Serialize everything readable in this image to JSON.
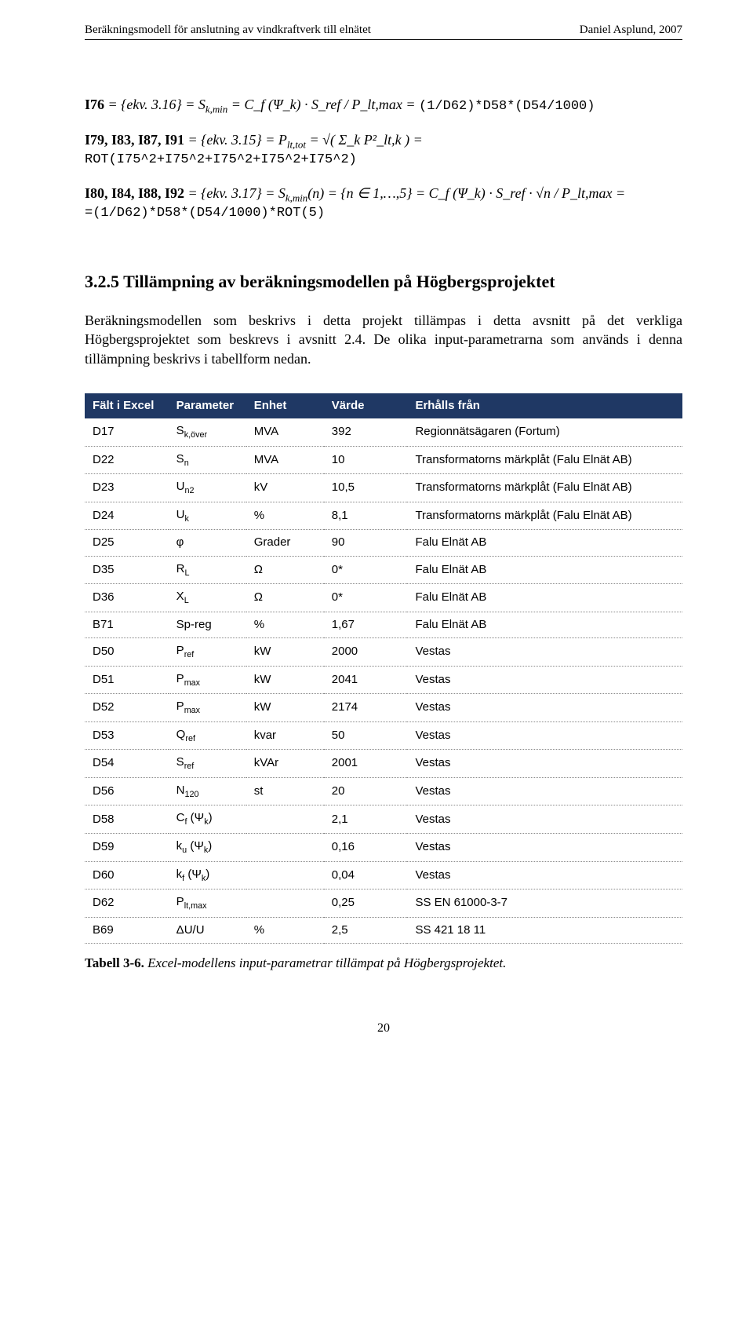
{
  "header": {
    "left": "Beräkningsmodell för anslutning av vindkraftverk till elnätet",
    "right": "Daniel Asplund, 2007"
  },
  "equations": {
    "e1_label": "I76",
    "e1_lhs": " = {ekv. 3.16} = S",
    "e1_sub": "k,min",
    "e1_mid": " = C_f (Ψ_k) · S_ref / P_lt,max = ",
    "e1_rhs_mono": "(1/D62)*D58*(D54/1000)",
    "e2_label": "I79, I83, I87, I91",
    "e2_lhs": " = {ekv. 3.15} = P",
    "e2_sub": "lt,tot",
    "e2_mid": " = √( Σ_k P²_lt,k ) =",
    "e2_rhs_mono": "ROT(I75^2+I75^2+I75^2+I75^2+I75^2)",
    "e3_label": "I80, I84, I88, I92",
    "e3_lhs": " = {ekv. 3.17} = S",
    "e3_sub": "k,min",
    "e3_mid": "(n) = {n ∈ 1,…,5} = C_f (Ψ_k) · S_ref · √n / P_lt,max =",
    "e3_rhs_mono": "=(1/D62)*D58*(D54/1000)*ROT(5)"
  },
  "section": {
    "heading": "3.2.5 Tillämpning av beräkningsmodellen på Högbergsprojektet",
    "body": "Beräkningsmodellen som beskrivs i detta projekt tillämpas i detta avsnitt på det verkliga Högbergsprojektet som beskrevs i avsnitt 2.4. De olika input-parametrarna som används i denna tillämpning beskrivs i tabellform nedan."
  },
  "table": {
    "header_bg": "#1f3864",
    "header_fg": "#ffffff",
    "row_border": "#888888",
    "headers": {
      "c1": "Fält i Excel",
      "c2": "Parameter",
      "c3": "Enhet",
      "c4": "Värde",
      "c5": "Erhålls från"
    },
    "rows": [
      {
        "f": "D17",
        "p": "S",
        "psub": "k,över",
        "u": "MVA",
        "v": "392",
        "s": "Regionnätsägaren (Fortum)"
      },
      {
        "f": "D22",
        "p": "S",
        "psub": "n",
        "u": "MVA",
        "v": "10",
        "s": "Transformatorns märkplåt (Falu Elnät AB)"
      },
      {
        "f": "D23",
        "p": "U",
        "psub": "n2",
        "u": "kV",
        "v": "10,5",
        "s": "Transformatorns märkplåt (Falu Elnät AB)"
      },
      {
        "f": "D24",
        "p": "U",
        "psub": "k",
        "u": "%",
        "v": "8,1",
        "s": "Transformatorns märkplåt (Falu Elnät AB)"
      },
      {
        "f": "D25",
        "p": "φ",
        "psub": "",
        "u": "Grader",
        "v": "90",
        "s": "Falu Elnät AB"
      },
      {
        "f": "D35",
        "p": "R",
        "psub": "L",
        "u": "Ω",
        "v": "0*",
        "s": "Falu Elnät AB"
      },
      {
        "f": "D36",
        "p": "X",
        "psub": "L",
        "u": "Ω",
        "v": "0*",
        "s": "Falu Elnät AB"
      },
      {
        "f": "B71",
        "p": "Sp-reg",
        "psub": "",
        "u": "%",
        "v": "1,67",
        "s": "Falu Elnät AB"
      },
      {
        "f": "D50",
        "p": "P",
        "psub": "ref",
        "u": "kW",
        "v": "2000",
        "s": "Vestas"
      },
      {
        "f": "D51",
        "p": "P",
        "psub": "max",
        "u": "kW",
        "v": "2041",
        "s": "Vestas"
      },
      {
        "f": "D52",
        "p": "P",
        "psub": "max",
        "u": "kW",
        "v": "2174",
        "s": "Vestas"
      },
      {
        "f": "D53",
        "p": "Q",
        "psub": "ref",
        "u": "kvar",
        "v": "50",
        "s": "Vestas"
      },
      {
        "f": "D54",
        "p": "S",
        "psub": "ref",
        "u": "kVAr",
        "v": "2001",
        "s": "Vestas"
      },
      {
        "f": "D56",
        "p": "N",
        "psub": "120",
        "u": "st",
        "v": "20",
        "s": "Vestas"
      },
      {
        "f": "D58",
        "p": "C",
        "psub": "f",
        "ptail": " (Ψ",
        "ptailsub": "k",
        "ptailend": ")",
        "u": "",
        "v": "2,1",
        "s": "Vestas"
      },
      {
        "f": "D59",
        "p": "k",
        "psub": "u",
        "ptail": " (Ψ",
        "ptailsub": "k",
        "ptailend": ")",
        "u": "",
        "v": "0,16",
        "s": "Vestas"
      },
      {
        "f": "D60",
        "p": "k",
        "psub": "f",
        "ptail": " (Ψ",
        "ptailsub": "k",
        "ptailend": ")",
        "u": "",
        "v": "0,04",
        "s": "Vestas"
      },
      {
        "f": "D62",
        "p": "P",
        "psub": "lt,max",
        "u": "",
        "v": "0,25",
        "s": "SS EN 61000-3-7"
      },
      {
        "f": "B69",
        "p": "ΔU/U",
        "psub": "",
        "u": "%",
        "v": "2,5",
        "s": "SS 421 18 11"
      }
    ]
  },
  "caption": {
    "label": "Tabell 3-6.",
    "text": " Excel-modellens input-parametrar tillämpat på Högbergsprojektet."
  },
  "page_number": "20"
}
